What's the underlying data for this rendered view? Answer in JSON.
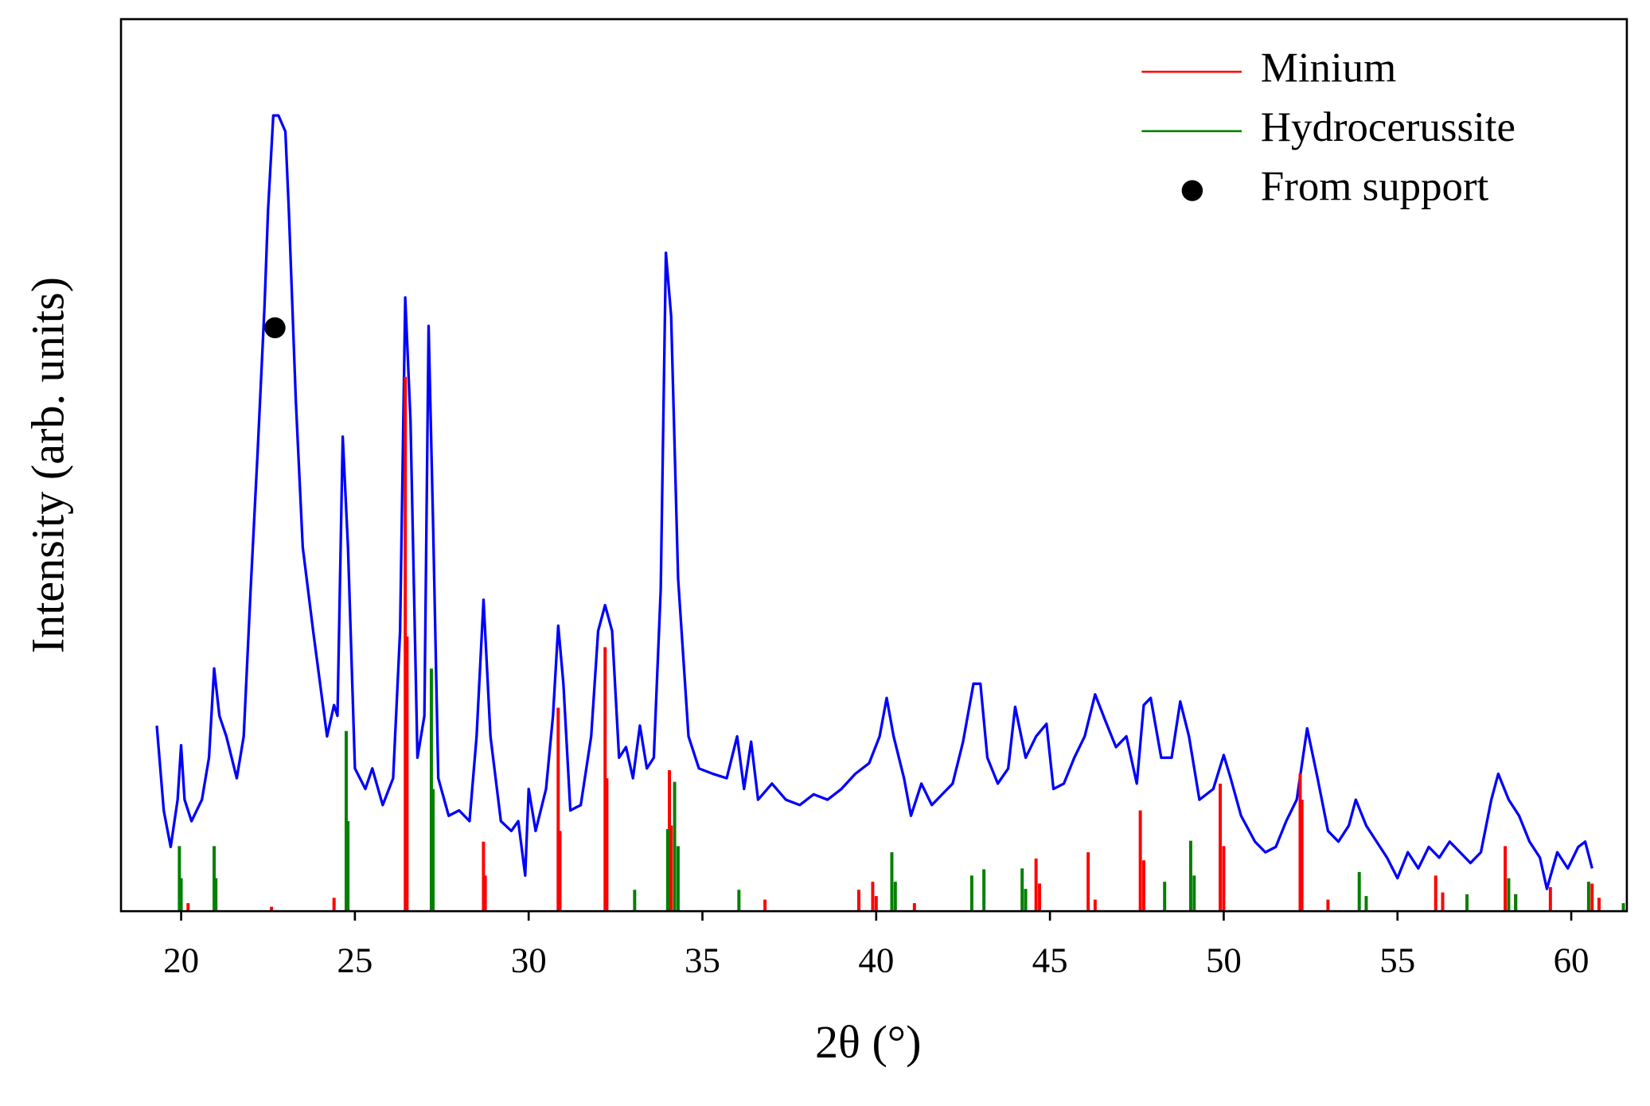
{
  "chart_data": {
    "type": "line",
    "xlabel": "2θ (°)",
    "ylabel": "Intensity (arb. units)",
    "xlim": [
      18.27,
      61.6
    ],
    "ylim": [
      0,
      100
    ],
    "xticks": [
      20,
      25,
      30,
      35,
      40,
      45,
      50,
      55,
      60
    ],
    "legend": "upper right",
    "series": [
      {
        "type": "line",
        "color": "#0000ff",
        "x": [
          19.3,
          19.5,
          19.7,
          19.9,
          20.0,
          20.1,
          20.3,
          20.6,
          20.8,
          20.95,
          21.1,
          21.3,
          21.6,
          21.8,
          22.0,
          22.2,
          22.4,
          22.5,
          22.65,
          22.8,
          23.0,
          23.1,
          23.3,
          23.5,
          23.8,
          24.0,
          24.2,
          24.4,
          24.5,
          24.65,
          24.8,
          25.0,
          25.3,
          25.5,
          25.8,
          26.1,
          26.3,
          26.45,
          26.6,
          26.8,
          27.0,
          27.12,
          27.25,
          27.4,
          27.7,
          28.0,
          28.3,
          28.5,
          28.7,
          28.9,
          29.2,
          29.5,
          29.7,
          29.9,
          30.0,
          30.2,
          30.5,
          30.7,
          30.85,
          31.0,
          31.2,
          31.5,
          31.8,
          32.0,
          32.2,
          32.4,
          32.6,
          32.8,
          33.0,
          33.2,
          33.4,
          33.6,
          33.8,
          33.95,
          34.1,
          34.3,
          34.6,
          34.9,
          35.3,
          35.7,
          36.0,
          36.2,
          36.4,
          36.6,
          37.0,
          37.4,
          37.8,
          38.2,
          38.6,
          39.0,
          39.4,
          39.8,
          40.1,
          40.3,
          40.5,
          40.8,
          41.0,
          41.3,
          41.6,
          41.9,
          42.2,
          42.5,
          42.8,
          43.0,
          43.2,
          43.5,
          43.8,
          44.0,
          44.3,
          44.6,
          44.9,
          45.1,
          45.4,
          45.7,
          46.0,
          46.3,
          46.6,
          46.9,
          47.2,
          47.5,
          47.7,
          47.9,
          48.2,
          48.5,
          48.75,
          49.0,
          49.3,
          49.7,
          50.0,
          50.2,
          50.5,
          50.9,
          51.2,
          51.5,
          51.8,
          52.1,
          52.4,
          52.7,
          53.0,
          53.3,
          53.6,
          53.8,
          54.1,
          54.4,
          54.7,
          55.0,
          55.3,
          55.6,
          55.9,
          56.2,
          56.5,
          56.8,
          57.1,
          57.4,
          57.7,
          57.9,
          58.2,
          58.5,
          58.8,
          59.1,
          59.3,
          59.6,
          59.9,
          60.2,
          60.4,
          60.6
        ],
        "values": [
          20.8,
          11.3,
          7.2,
          12.5,
          18.6,
          12.5,
          10.1,
          12.5,
          17.2,
          27.2,
          21.9,
          19.6,
          14.9,
          19.6,
          36.1,
          51.4,
          67.9,
          78.5,
          89.2,
          89.2,
          87.4,
          78.5,
          57.3,
          40.8,
          31.4,
          25.5,
          19.6,
          23.1,
          21.9,
          53.2,
          40.8,
          16.0,
          13.7,
          16.0,
          11.9,
          14.9,
          31.4,
          68.8,
          55.0,
          17.2,
          21.9,
          65.6,
          43.2,
          14.9,
          10.7,
          11.3,
          10.1,
          19.6,
          34.9,
          19.6,
          10.1,
          9.0,
          10.1,
          4.0,
          13.7,
          9.0,
          13.7,
          21.9,
          32.0,
          25.5,
          11.3,
          11.9,
          19.6,
          31.4,
          34.3,
          31.4,
          17.2,
          18.4,
          14.9,
          20.8,
          16.0,
          17.2,
          36.1,
          73.8,
          66.7,
          37.3,
          19.6,
          16.0,
          15.4,
          14.9,
          19.6,
          13.7,
          19.0,
          12.5,
          14.3,
          12.5,
          11.9,
          13.1,
          12.5,
          13.7,
          15.4,
          16.6,
          19.6,
          23.9,
          19.6,
          14.9,
          10.7,
          14.3,
          11.9,
          13.1,
          14.3,
          19.0,
          25.5,
          25.5,
          17.2,
          14.3,
          16.0,
          22.9,
          17.2,
          19.6,
          21.0,
          13.7,
          14.3,
          17.2,
          19.6,
          24.3,
          21.3,
          18.4,
          19.6,
          14.3,
          23.1,
          23.9,
          17.2,
          17.2,
          23.5,
          19.6,
          12.5,
          13.7,
          17.5,
          14.9,
          10.7,
          7.8,
          6.6,
          7.2,
          10.1,
          12.5,
          20.5,
          14.9,
          9.0,
          7.8,
          9.6,
          12.5,
          9.6,
          7.8,
          6.0,
          3.7,
          6.6,
          4.8,
          7.2,
          6.0,
          7.8,
          6.6,
          5.4,
          6.6,
          12.5,
          15.4,
          12.5,
          10.7,
          7.8,
          6.0,
          2.5,
          6.6,
          4.8,
          7.2,
          7.8,
          4.8
        ]
      },
      {
        "name": "Minium",
        "type": "stem",
        "color": "#ff0000",
        "x": [
          20.2,
          22.6,
          24.4,
          26.45,
          26.5,
          28.7,
          28.75,
          30.85,
          30.9,
          32.2,
          32.25,
          34.05,
          34.1,
          36.8,
          39.5,
          39.9,
          40.0,
          41.1,
          44.6,
          44.7,
          46.1,
          46.3,
          47.6,
          47.7,
          49.9,
          50.0,
          52.2,
          52.25,
          53.0,
          56.1,
          56.3,
          58.1,
          58.4,
          59.4,
          60.6,
          60.8
        ],
        "values": [
          0.9,
          0.5,
          1.5,
          59.9,
          30.8,
          7.8,
          4.0,
          22.8,
          9.0,
          29.6,
          14.9,
          15.8,
          9.6,
          1.3,
          2.4,
          3.3,
          1.7,
          0.9,
          5.9,
          3.1,
          6.6,
          1.3,
          11.3,
          5.7,
          14.3,
          7.3,
          15.4,
          12.5,
          1.3,
          4.0,
          2.1,
          7.3,
          1.9,
          2.7,
          3.1,
          1.5
        ]
      },
      {
        "name": "Hydrocerussite",
        "type": "stem",
        "color": "#008000",
        "x": [
          19.95,
          20.0,
          20.95,
          21.0,
          24.75,
          24.8,
          27.2,
          27.25,
          33.05,
          34.0,
          34.2,
          34.3,
          36.05,
          40.45,
          40.55,
          42.75,
          43.1,
          44.2,
          44.3,
          48.3,
          49.05,
          49.15,
          53.9,
          54.1,
          57.0,
          58.2,
          58.4,
          60.5,
          61.5
        ],
        "values": [
          7.3,
          3.7,
          7.3,
          3.7,
          20.2,
          10.1,
          27.2,
          13.7,
          2.4,
          9.2,
          14.5,
          7.3,
          2.4,
          6.6,
          3.3,
          4.0,
          4.7,
          4.8,
          2.5,
          3.3,
          7.9,
          4.0,
          4.4,
          1.7,
          1.9,
          3.7,
          1.9,
          3.3,
          0.9
        ]
      },
      {
        "name": "From support",
        "type": "scatter",
        "color": "#000000",
        "x": [
          22.7
        ],
        "values": [
          65.4
        ]
      }
    ]
  }
}
